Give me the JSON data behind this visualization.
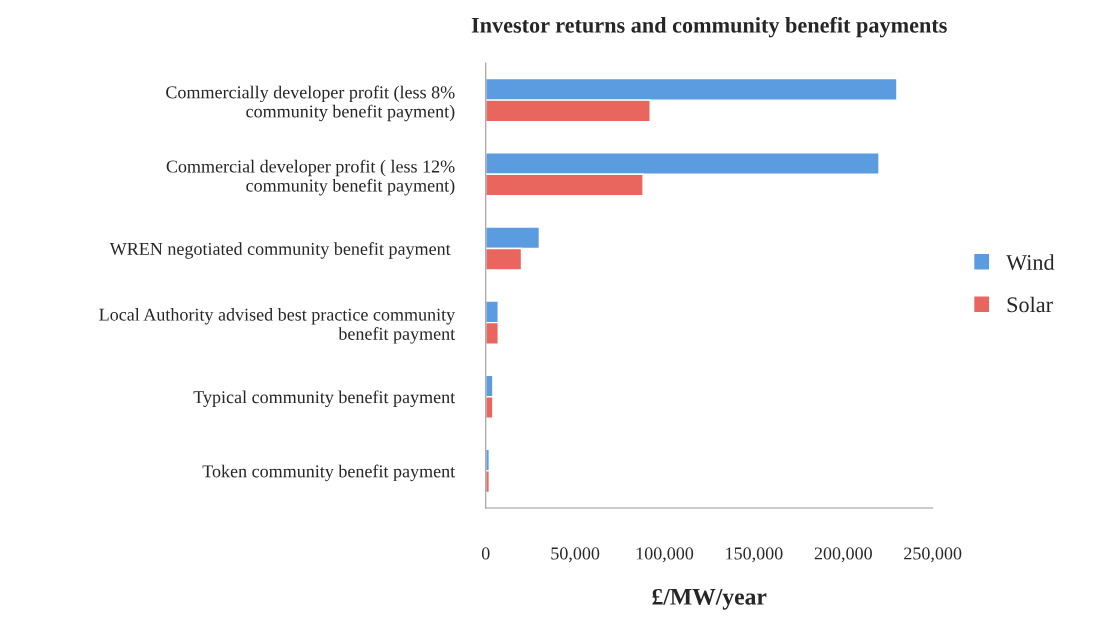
{
  "chart_data": {
    "type": "bar",
    "orientation": "horizontal",
    "title": "Investor returns and community benefit payments",
    "xlabel": "£/MW/year",
    "categories": [
      "Commercially developer profit (less 8%\ncommunity benefit payment)",
      "Commercial developer profit ( less 12%\ncommunity benefit payment)",
      "WREN negotiated community benefit payment ",
      "Local Authority advised best practice community\nbenefit payment",
      "Typical community benefit payment",
      "Token community benefit payment"
    ],
    "series": [
      {
        "name": "Wind",
        "color": "#5b9be0",
        "values": [
          230000,
          220000,
          30000,
          7000,
          4000,
          2000
        ]
      },
      {
        "name": "Solar",
        "color": "#e8665e",
        "values": [
          92000,
          88000,
          20000,
          7000,
          4000,
          2000
        ]
      }
    ],
    "xlim": [
      0,
      250000
    ],
    "xticks": [
      {
        "value": 0,
        "label": "0"
      },
      {
        "value": 50000,
        "label": "50,000"
      },
      {
        "value": 100000,
        "label": "100,000"
      },
      {
        "value": 150000,
        "label": "150,000"
      },
      {
        "value": 200000,
        "label": "200,000"
      },
      {
        "value": 250000,
        "label": "250,000"
      }
    ],
    "grid": false,
    "legend": "right"
  }
}
